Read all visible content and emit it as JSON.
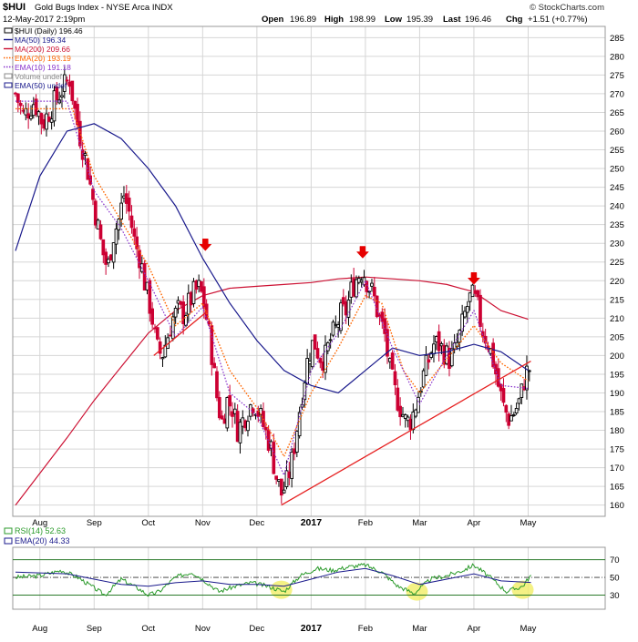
{
  "header": {
    "title_symbol": "$HUI",
    "title_name": "Gold Bugs Index - NYSE Arca  INDX",
    "watermark": "© StockCharts.com",
    "date_line": "12-May-2017 2:19pm",
    "quote": {
      "open_label": "Open",
      "open": "196.89",
      "high_label": "High",
      "high": "198.99",
      "low_label": "Low",
      "low": "195.39",
      "last_label": "Last",
      "last": "196.46",
      "chg_label": "Chg",
      "chg": "+1.51 (+0.77%)"
    }
  },
  "colors": {
    "up": "#000000",
    "down": "#cc0033",
    "ma50": "#1a1a8c",
    "ma200": "#cc1133",
    "ema20": "#ff6600",
    "ema10": "#8833cc",
    "trend": "#e62020",
    "rsi": "#2a9a2a",
    "rsi_ema": "#1a1a8c",
    "rsi_band": "#2a7a2a",
    "grid": "#d6d6d6",
    "highlight": "#f2ef70",
    "marker": "#e60000"
  },
  "legend": [
    {
      "label": "$HUI (Daily) 196.46",
      "color": "#000000",
      "style": "box"
    },
    {
      "label": "MA(50) 196.34",
      "color": "#1a1a8c",
      "style": "solid"
    },
    {
      "label": "MA(200) 209.66",
      "color": "#cc1133",
      "style": "solid"
    },
    {
      "label": "EMA(20) 193.19",
      "color": "#ff6600",
      "style": "dotted"
    },
    {
      "label": "EMA(10) 191.18",
      "color": "#8833cc",
      "style": "dotted"
    },
    {
      "label": "Volume undef",
      "color": "#888888",
      "style": "box"
    },
    {
      "label": "EMA(50) undef",
      "color": "#1a1a8c",
      "style": "box"
    }
  ],
  "rsi_legend": [
    {
      "label": "RSI(14) 52.63",
      "color": "#2a9a2a"
    },
    {
      "label": "EMA(20) 44.33",
      "color": "#1a1a8c"
    }
  ],
  "x_labels": [
    "Aug",
    "Sep",
    "Oct",
    "Nov",
    "Dec",
    "2017",
    "Feb",
    "Mar",
    "Apr",
    "May"
  ],
  "chart_data": {
    "type": "line",
    "title": "$HUI Gold Bugs Index - NYSE Arca INDX",
    "xlabel": "",
    "ylabel": "",
    "ylim": [
      157,
      288
    ],
    "y_ticks": [
      160,
      165,
      170,
      175,
      180,
      185,
      190,
      195,
      200,
      205,
      210,
      215,
      220,
      225,
      230,
      235,
      240,
      245,
      250,
      255,
      260,
      265,
      270,
      275,
      280,
      285
    ],
    "grid": true,
    "legend_position": "top-left",
    "x_range_months": [
      -0.5,
      10.42
    ],
    "month_positions": [
      0,
      1,
      2,
      3,
      4,
      5,
      6,
      7,
      8,
      9
    ],
    "price_path": [
      [
        -0.45,
        270
      ],
      [
        -0.3,
        264
      ],
      [
        -0.1,
        268
      ],
      [
        0.05,
        262
      ],
      [
        0.2,
        266
      ],
      [
        0.4,
        271
      ],
      [
        0.55,
        274
      ],
      [
        0.65,
        265
      ],
      [
        0.75,
        258
      ],
      [
        0.85,
        252
      ],
      [
        0.95,
        244
      ],
      [
        1.05,
        236
      ],
      [
        1.15,
        228
      ],
      [
        1.25,
        223
      ],
      [
        1.35,
        232
      ],
      [
        1.45,
        236
      ],
      [
        1.55,
        243
      ],
      [
        1.65,
        238
      ],
      [
        1.75,
        230
      ],
      [
        1.85,
        226
      ],
      [
        1.95,
        218
      ],
      [
        2.05,
        212
      ],
      [
        2.15,
        202
      ],
      [
        2.25,
        200
      ],
      [
        2.35,
        205
      ],
      [
        2.45,
        210
      ],
      [
        2.55,
        212
      ],
      [
        2.65,
        211
      ],
      [
        2.75,
        214
      ],
      [
        2.85,
        217
      ],
      [
        2.95,
        218
      ],
      [
        3.05,
        212
      ],
      [
        3.15,
        203
      ],
      [
        3.25,
        190
      ],
      [
        3.35,
        182
      ],
      [
        3.45,
        188
      ],
      [
        3.55,
        186
      ],
      [
        3.65,
        180
      ],
      [
        3.75,
        183
      ],
      [
        3.85,
        186
      ],
      [
        3.95,
        188
      ],
      [
        4.05,
        184
      ],
      [
        4.15,
        180
      ],
      [
        4.25,
        176
      ],
      [
        4.35,
        168
      ],
      [
        4.45,
        163
      ],
      [
        4.55,
        166
      ],
      [
        4.65,
        172
      ],
      [
        4.75,
        182
      ],
      [
        4.85,
        192
      ],
      [
        4.95,
        200
      ],
      [
        5.05,
        204
      ],
      [
        5.15,
        200
      ],
      [
        5.25,
        199
      ],
      [
        5.35,
        204
      ],
      [
        5.45,
        207
      ],
      [
        5.55,
        211
      ],
      [
        5.65,
        212
      ],
      [
        5.75,
        218
      ],
      [
        5.85,
        221
      ],
      [
        5.95,
        223
      ],
      [
        6.05,
        219
      ],
      [
        6.15,
        216
      ],
      [
        6.25,
        210
      ],
      [
        6.35,
        206
      ],
      [
        6.45,
        196
      ],
      [
        6.55,
        190
      ],
      [
        6.65,
        186
      ],
      [
        6.75,
        182
      ],
      [
        6.85,
        183
      ],
      [
        6.95,
        188
      ],
      [
        7.05,
        194
      ],
      [
        7.15,
        198
      ],
      [
        7.25,
        203
      ],
      [
        7.35,
        203
      ],
      [
        7.45,
        201
      ],
      [
        7.55,
        199
      ],
      [
        7.65,
        201
      ],
      [
        7.75,
        206
      ],
      [
        7.85,
        212
      ],
      [
        7.95,
        216
      ],
      [
        8.05,
        214
      ],
      [
        8.15,
        207
      ],
      [
        8.25,
        204
      ],
      [
        8.35,
        199
      ],
      [
        8.45,
        192
      ],
      [
        8.55,
        186
      ],
      [
        8.65,
        183
      ],
      [
        8.75,
        185
      ],
      [
        8.85,
        188
      ],
      [
        8.95,
        195
      ],
      [
        9.05,
        197
      ]
    ],
    "series": [
      {
        "name": "MA(50) 196.34",
        "points": [
          [
            -0.45,
            228
          ],
          [
            0.0,
            248
          ],
          [
            0.5,
            260
          ],
          [
            1.0,
            262
          ],
          [
            1.5,
            258
          ],
          [
            2.0,
            250
          ],
          [
            2.5,
            240
          ],
          [
            3.0,
            226
          ],
          [
            3.5,
            214
          ],
          [
            4.0,
            204
          ],
          [
            4.5,
            196
          ],
          [
            5.0,
            192
          ],
          [
            5.5,
            190
          ],
          [
            6.0,
            196
          ],
          [
            6.5,
            202
          ],
          [
            7.0,
            200
          ],
          [
            7.5,
            201
          ],
          [
            8.0,
            203
          ],
          [
            8.5,
            201
          ],
          [
            9.0,
            196
          ]
        ]
      },
      {
        "name": "MA(200) 209.66",
        "points": [
          [
            -0.45,
            160
          ],
          [
            0.5,
            178
          ],
          [
            1.0,
            188
          ],
          [
            1.5,
            197
          ],
          [
            2.0,
            206
          ],
          [
            2.5,
            212
          ],
          [
            3.0,
            216
          ],
          [
            3.5,
            218
          ],
          [
            4.0,
            218.5
          ],
          [
            4.5,
            219
          ],
          [
            5.0,
            219.5
          ],
          [
            5.5,
            220.5
          ],
          [
            6.0,
            221
          ],
          [
            6.5,
            220.5
          ],
          [
            7.0,
            220
          ],
          [
            7.5,
            219
          ],
          [
            8.0,
            217
          ],
          [
            8.5,
            212
          ],
          [
            9.0,
            209.7
          ]
        ]
      },
      {
        "name": "EMA(20) 193.19",
        "points": [
          [
            -0.45,
            266
          ],
          [
            0.3,
            266
          ],
          [
            0.6,
            266
          ],
          [
            1.0,
            248
          ],
          [
            1.5,
            236
          ],
          [
            2.0,
            224
          ],
          [
            2.5,
            208
          ],
          [
            3.0,
            214
          ],
          [
            3.5,
            196
          ],
          [
            4.0,
            186
          ],
          [
            4.5,
            173
          ],
          [
            5.0,
            190
          ],
          [
            5.5,
            202
          ],
          [
            6.0,
            216
          ],
          [
            6.3,
            214
          ],
          [
            6.7,
            196
          ],
          [
            7.0,
            190
          ],
          [
            7.5,
            199
          ],
          [
            8.0,
            208
          ],
          [
            8.5,
            198
          ],
          [
            9.0,
            193.2
          ]
        ]
      },
      {
        "name": "EMA(10) 191.18",
        "points": [
          [
            -0.45,
            268
          ],
          [
            0.5,
            268
          ],
          [
            1.0,
            244
          ],
          [
            1.5,
            234
          ],
          [
            2.0,
            220
          ],
          [
            2.5,
            205
          ],
          [
            3.0,
            213
          ],
          [
            3.5,
            190
          ],
          [
            4.0,
            184
          ],
          [
            4.5,
            168
          ],
          [
            5.0,
            196
          ],
          [
            5.5,
            206
          ],
          [
            6.0,
            220
          ],
          [
            6.5,
            202
          ],
          [
            7.0,
            187
          ],
          [
            7.5,
            200
          ],
          [
            8.0,
            212
          ],
          [
            8.5,
            192
          ],
          [
            9.0,
            191.2
          ]
        ]
      }
    ],
    "trendlines": [
      {
        "points": [
          [
            2.1,
            200
          ],
          [
            3.1,
            212
          ]
        ]
      },
      {
        "points": [
          [
            4.45,
            160
          ],
          [
            9.05,
            198.5
          ]
        ]
      }
    ],
    "markers": [
      {
        "x": 3.05,
        "y": 229
      },
      {
        "x": 5.95,
        "y": 227
      },
      {
        "x": 8.0,
        "y": 220
      }
    ],
    "rsi": {
      "ylim": [
        14,
        84
      ],
      "y_ticks": [
        30,
        50,
        70
      ],
      "bands": [
        30,
        70
      ],
      "midline": 50,
      "rsi_path": [
        [
          -0.45,
          50
        ],
        [
          0.0,
          52
        ],
        [
          0.4,
          58
        ],
        [
          0.7,
          50
        ],
        [
          1.0,
          38
        ],
        [
          1.2,
          30
        ],
        [
          1.5,
          48
        ],
        [
          1.8,
          38
        ],
        [
          2.0,
          30
        ],
        [
          2.2,
          34
        ],
        [
          2.5,
          50
        ],
        [
          2.8,
          56
        ],
        [
          3.0,
          48
        ],
        [
          3.3,
          34
        ],
        [
          3.6,
          40
        ],
        [
          3.9,
          44
        ],
        [
          4.2,
          40
        ],
        [
          4.5,
          34
        ],
        [
          4.8,
          52
        ],
        [
          5.1,
          60
        ],
        [
          5.4,
          58
        ],
        [
          5.7,
          62
        ],
        [
          6.0,
          64
        ],
        [
          6.3,
          56
        ],
        [
          6.6,
          40
        ],
        [
          6.9,
          32
        ],
        [
          7.2,
          48
        ],
        [
          7.5,
          52
        ],
        [
          7.8,
          58
        ],
        [
          8.0,
          64
        ],
        [
          8.3,
          50
        ],
        [
          8.6,
          34
        ],
        [
          8.9,
          40
        ],
        [
          9.05,
          52.6
        ]
      ],
      "ema_path": [
        [
          -0.45,
          56
        ],
        [
          0.5,
          54
        ],
        [
          1.0,
          48
        ],
        [
          1.5,
          42
        ],
        [
          2.0,
          40
        ],
        [
          2.5,
          44
        ],
        [
          3.0,
          46
        ],
        [
          3.5,
          42
        ],
        [
          4.0,
          42
        ],
        [
          4.5,
          40
        ],
        [
          5.0,
          48
        ],
        [
          5.5,
          56
        ],
        [
          6.0,
          60
        ],
        [
          6.5,
          52
        ],
        [
          7.0,
          42
        ],
        [
          7.5,
          48
        ],
        [
          8.0,
          54
        ],
        [
          8.5,
          46
        ],
        [
          9.05,
          44.3
        ]
      ],
      "highlights": [
        [
          4.45,
          36
        ],
        [
          6.95,
          34
        ],
        [
          8.9,
          36
        ]
      ]
    }
  }
}
